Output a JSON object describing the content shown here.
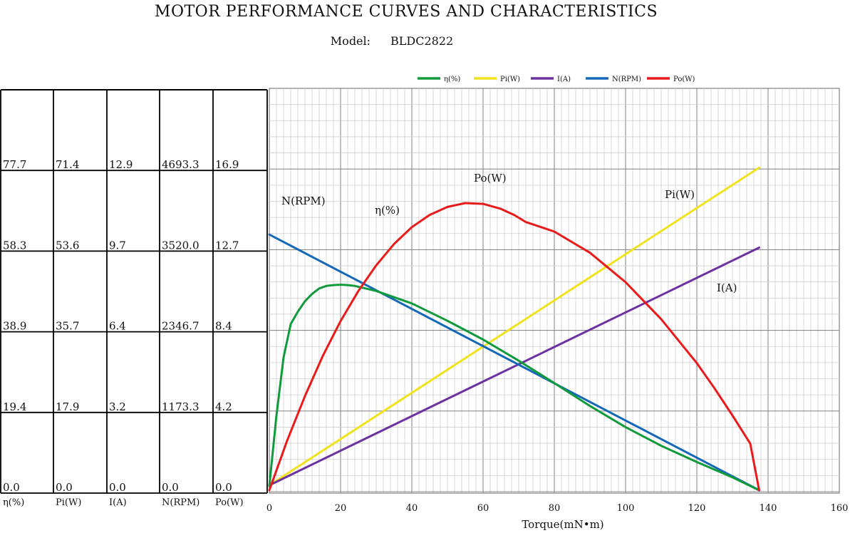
{
  "header": {
    "title": "MOTOR PERFORMANCE CURVES AND CHARACTERISTICS",
    "model_label": "Model:",
    "model_value": "BLDC2822"
  },
  "chart_data": {
    "type": "line",
    "xlabel": "Torque(mN•m)",
    "xlim": [
      0,
      160
    ],
    "x_ticks": [
      "0",
      "20",
      "40",
      "60",
      "80",
      "100",
      "120",
      "140",
      "160"
    ],
    "grid": true,
    "legend_position": "top",
    "y_table": {
      "headers": [
        "η(%)",
        "Pi(W)",
        "I(A)",
        "N(RPM)",
        "Po(W)"
      ],
      "rows": [
        [
          "77.7",
          "71.4",
          "12.9",
          "4693.3",
          "16.9"
        ],
        [
          "58.3",
          "53.6",
          "9.7",
          "3520.0",
          "12.7"
        ],
        [
          "38.9",
          "35.7",
          "6.4",
          "2346.7",
          "8.4"
        ],
        [
          "19.4",
          "17.9",
          "3.2",
          "1173.3",
          "4.2"
        ],
        [
          "0.0",
          "0.0",
          "0.0",
          "0.0",
          "0.0"
        ]
      ]
    },
    "series": [
      {
        "name": "η(%)",
        "legend_label": "η(%)",
        "color": "#119a3c",
        "x": [
          0,
          2,
          4,
          6,
          8,
          10,
          12,
          14,
          16,
          18,
          20,
          22,
          24,
          30,
          40,
          50,
          60,
          70,
          80,
          90,
          100,
          110,
          120,
          130,
          137
        ],
        "y": [
          1,
          18,
          32,
          40,
          43,
          45.5,
          47.3,
          48.6,
          49.2,
          49.4,
          49.5,
          49.4,
          49.2,
          48.0,
          45.0,
          40.8,
          36.3,
          31.2,
          25.8,
          20.3,
          15.2,
          10.7,
          6.8,
          3.1,
          0.2
        ]
      },
      {
        "name": "Pi(W)",
        "legend_label": "Pi(W)",
        "color": "#f0e21c",
        "x": [
          0,
          137.5
        ],
        "y": [
          1.1,
          71.4
        ]
      },
      {
        "name": "I(A)",
        "legend_label": "I(A)",
        "color": "#6e31a0",
        "x": [
          0,
          137.5
        ],
        "y": [
          0.2,
          9.7
        ]
      },
      {
        "name": "N(RPM)",
        "legend_label": "N(RPM)",
        "color": "#1568b8",
        "x": [
          0,
          137.5
        ],
        "y": [
          3720,
          0
        ]
      },
      {
        "name": "Po(W)",
        "legend_label": "Po(W)",
        "color": "#e81a1a",
        "x": [
          0,
          5,
          10,
          15,
          20,
          25,
          30,
          35,
          40,
          45,
          50,
          55,
          60,
          65,
          68.8,
          72,
          80,
          90,
          100,
          110,
          120,
          125,
          130,
          135,
          137.5
        ],
        "y": [
          0,
          2.6,
          4.93,
          7.03,
          8.86,
          10.44,
          11.78,
          12.9,
          13.78,
          14.42,
          14.84,
          15.04,
          15.0,
          14.74,
          14.41,
          14.05,
          13.55,
          12.44,
          10.9,
          8.96,
          6.66,
          5.33,
          3.92,
          2.44,
          0
        ]
      }
    ],
    "annotations": [
      {
        "text": "Po(W)",
        "series": "Po(W)"
      },
      {
        "text": "Pi(W)",
        "series": "Pi(W)"
      },
      {
        "text": "N(RPM)",
        "series": "N(RPM)"
      },
      {
        "text": "η(%)",
        "series": "η(%)"
      },
      {
        "text": "I(A)",
        "series": "I(A)"
      }
    ]
  }
}
